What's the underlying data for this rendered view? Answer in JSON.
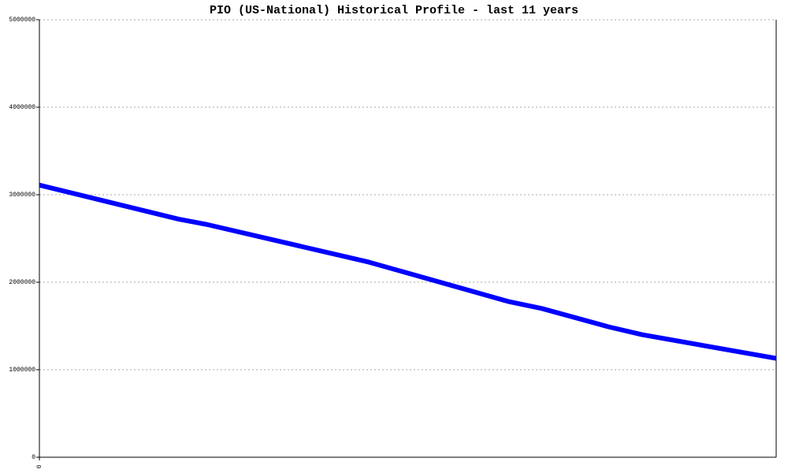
{
  "chart_data": {
    "type": "line",
    "title": "PIO (US-National) Historical Profile - last 11 years",
    "x": [
      0,
      25,
      30,
      59,
      84,
      90,
      102,
      108,
      132
    ],
    "series": [
      {
        "name": "PIO",
        "color": "#0000ff",
        "values": [
          3110000,
          2720000,
          2660000,
          2230000,
          1780000,
          1700000,
          1490000,
          1400000,
          1130000
        ]
      }
    ],
    "xlim": [
      0,
      132
    ],
    "xticks": [
      0
    ],
    "ylim": [
      0,
      5000000
    ],
    "yticks": [
      0,
      1000000,
      2000000,
      3000000,
      4000000,
      5000000
    ],
    "grid": true
  }
}
